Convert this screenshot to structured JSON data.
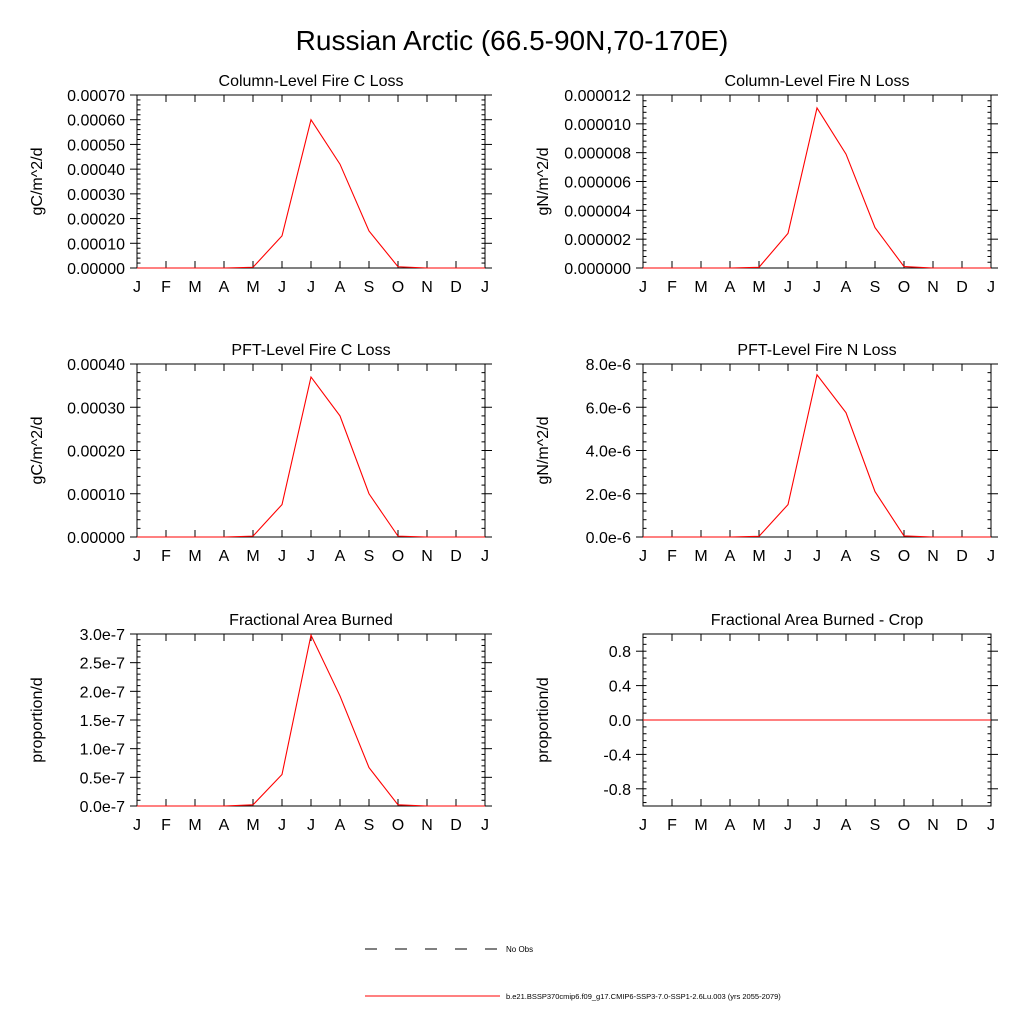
{
  "title": "Russian Arctic (66.5-90N,70-170E)",
  "colors": {
    "model": "#ff0000",
    "obs": "#000000",
    "axis": "#000000"
  },
  "legend": {
    "placement": "bottom-center",
    "obs_label": "No Obs",
    "model_label": "b.e21.BSSP370cmip6.f09_g17.CMIP6-SSP3-7.0-SSP1-2.6Lu.003 (yrs 2055-2079)"
  },
  "chart_data": [
    {
      "type": "line",
      "title": "Column-Level Fire C Loss",
      "ylabel": "gC/m^2/d",
      "xlabel": "",
      "x_ticks": [
        "J",
        "F",
        "M",
        "A",
        "M",
        "J",
        "J",
        "A",
        "S",
        "O",
        "N",
        "D",
        "J"
      ],
      "ylim": [
        0,
        0.0007
      ],
      "y_ticks": [
        0,
        0.0001,
        0.0002,
        0.0003,
        0.0004,
        0.0005,
        0.0006,
        0.0007
      ],
      "y_tick_labels": [
        "0.00000",
        "0.00010",
        "0.00020",
        "0.00030",
        "0.00040",
        "0.00050",
        "0.00060",
        "0.00070"
      ],
      "grid": false,
      "series": [
        {
          "name": "b.e21.BSSP370cmip6.f09_g17.CMIP6-SSP3-7.0-SSP1-2.6Lu.003 (yrs 2055-2079)",
          "values": [
            0,
            0,
            0,
            0,
            3e-06,
            0.00013,
            0.0006,
            0.00042,
            0.00015,
            5e-06,
            0,
            0,
            0
          ]
        }
      ]
    },
    {
      "type": "line",
      "title": "Column-Level Fire N Loss",
      "ylabel": "gN/m^2/d",
      "xlabel": "",
      "x_ticks": [
        "J",
        "F",
        "M",
        "A",
        "M",
        "J",
        "J",
        "A",
        "S",
        "O",
        "N",
        "D",
        "J"
      ],
      "ylim": [
        0,
        1.2e-05
      ],
      "y_ticks": [
        0,
        2e-06,
        4e-06,
        6e-06,
        8e-06,
        1e-05,
        1.2e-05
      ],
      "y_tick_labels": [
        "0.000000",
        "0.000002",
        "0.000004",
        "0.000006",
        "0.000008",
        "0.000010",
        "0.000012"
      ],
      "grid": false,
      "series": [
        {
          "name": "b.e21.BSSP370cmip6.f09_g17.CMIP6-SSP3-7.0-SSP1-2.6Lu.003 (yrs 2055-2079)",
          "values": [
            0,
            0,
            0,
            0,
            5e-08,
            2.4e-06,
            1.11e-05,
            7.9e-06,
            2.8e-06,
            1e-07,
            0,
            0,
            0
          ]
        }
      ]
    },
    {
      "type": "line",
      "title": "PFT-Level Fire C Loss",
      "ylabel": "gC/m^2/d",
      "xlabel": "",
      "x_ticks": [
        "J",
        "F",
        "M",
        "A",
        "M",
        "J",
        "J",
        "A",
        "S",
        "O",
        "N",
        "D",
        "J"
      ],
      "ylim": [
        0,
        0.0004
      ],
      "y_ticks": [
        0,
        0.0001,
        0.0002,
        0.0003,
        0.0004
      ],
      "y_tick_labels": [
        "0.00000",
        "0.00010",
        "0.00020",
        "0.00030",
        "0.00040"
      ],
      "grid": false,
      "series": [
        {
          "name": "b.e21.BSSP370cmip6.f09_g17.CMIP6-SSP3-7.0-SSP1-2.6Lu.003 (yrs 2055-2079)",
          "values": [
            0,
            0,
            0,
            0,
            2e-06,
            7.5e-05,
            0.00037,
            0.00028,
            0.0001,
            2e-06,
            0,
            0,
            0
          ]
        }
      ]
    },
    {
      "type": "line",
      "title": "PFT-Level Fire N Loss",
      "ylabel": "gN/m^2/d",
      "xlabel": "",
      "x_ticks": [
        "J",
        "F",
        "M",
        "A",
        "M",
        "J",
        "J",
        "A",
        "S",
        "O",
        "N",
        "D",
        "J"
      ],
      "ylim": [
        0,
        8e-06
      ],
      "y_ticks": [
        0,
        2e-06,
        4e-06,
        6e-06,
        8e-06
      ],
      "y_tick_labels": [
        "0.0e-6",
        "2.0e-6",
        "4.0e-6",
        "6.0e-6",
        "8.0e-6"
      ],
      "grid": false,
      "series": [
        {
          "name": "b.e21.BSSP370cmip6.f09_g17.CMIP6-SSP3-7.0-SSP1-2.6Lu.003 (yrs 2055-2079)",
          "values": [
            0,
            0,
            0,
            0,
            3e-08,
            1.5e-06,
            7.5e-06,
            5.75e-06,
            2.1e-06,
            5e-08,
            0,
            0,
            0
          ]
        }
      ]
    },
    {
      "type": "line",
      "title": "Fractional Area Burned",
      "ylabel": "proportion/d",
      "xlabel": "",
      "x_ticks": [
        "J",
        "F",
        "M",
        "A",
        "M",
        "J",
        "J",
        "A",
        "S",
        "O",
        "N",
        "D",
        "J"
      ],
      "ylim": [
        0,
        3e-07
      ],
      "y_ticks": [
        0,
        5e-08,
        1e-07,
        1.5e-07,
        2e-07,
        2.5e-07,
        3e-07
      ],
      "y_tick_labels": [
        "0.0e-7",
        "0.5e-7",
        "1.0e-7",
        "1.5e-7",
        "2.0e-7",
        "2.5e-7",
        "3.0e-7"
      ],
      "grid": false,
      "series": [
        {
          "name": "b.e21.BSSP370cmip6.f09_g17.CMIP6-SSP3-7.0-SSP1-2.6Lu.003 (yrs 2055-2079)",
          "values": [
            0,
            0,
            0,
            0,
            2e-09,
            5.5e-08,
            2.98e-07,
            1.92e-07,
            6.7e-08,
            2e-09,
            0,
            0,
            0
          ]
        }
      ]
    },
    {
      "type": "line",
      "title": "Fractional Area Burned - Crop",
      "ylabel": "proportion/d",
      "xlabel": "",
      "x_ticks": [
        "J",
        "F",
        "M",
        "A",
        "M",
        "J",
        "J",
        "A",
        "S",
        "O",
        "N",
        "D",
        "J"
      ],
      "ylim": [
        -1.0,
        1.0
      ],
      "y_ticks": [
        -0.8,
        -0.4,
        0,
        0.4,
        0.8
      ],
      "y_tick_labels": [
        "-0.8",
        "-0.4",
        "0.0",
        "0.4",
        "0.8"
      ],
      "grid": false,
      "series": [
        {
          "name": "b.e21.BSSP370cmip6.f09_g17.CMIP6-SSP3-7.0-SSP1-2.6Lu.003 (yrs 2055-2079)",
          "values": [
            0,
            0,
            0,
            0,
            0,
            0,
            0,
            0,
            0,
            0,
            0,
            0,
            0
          ]
        }
      ]
    }
  ]
}
